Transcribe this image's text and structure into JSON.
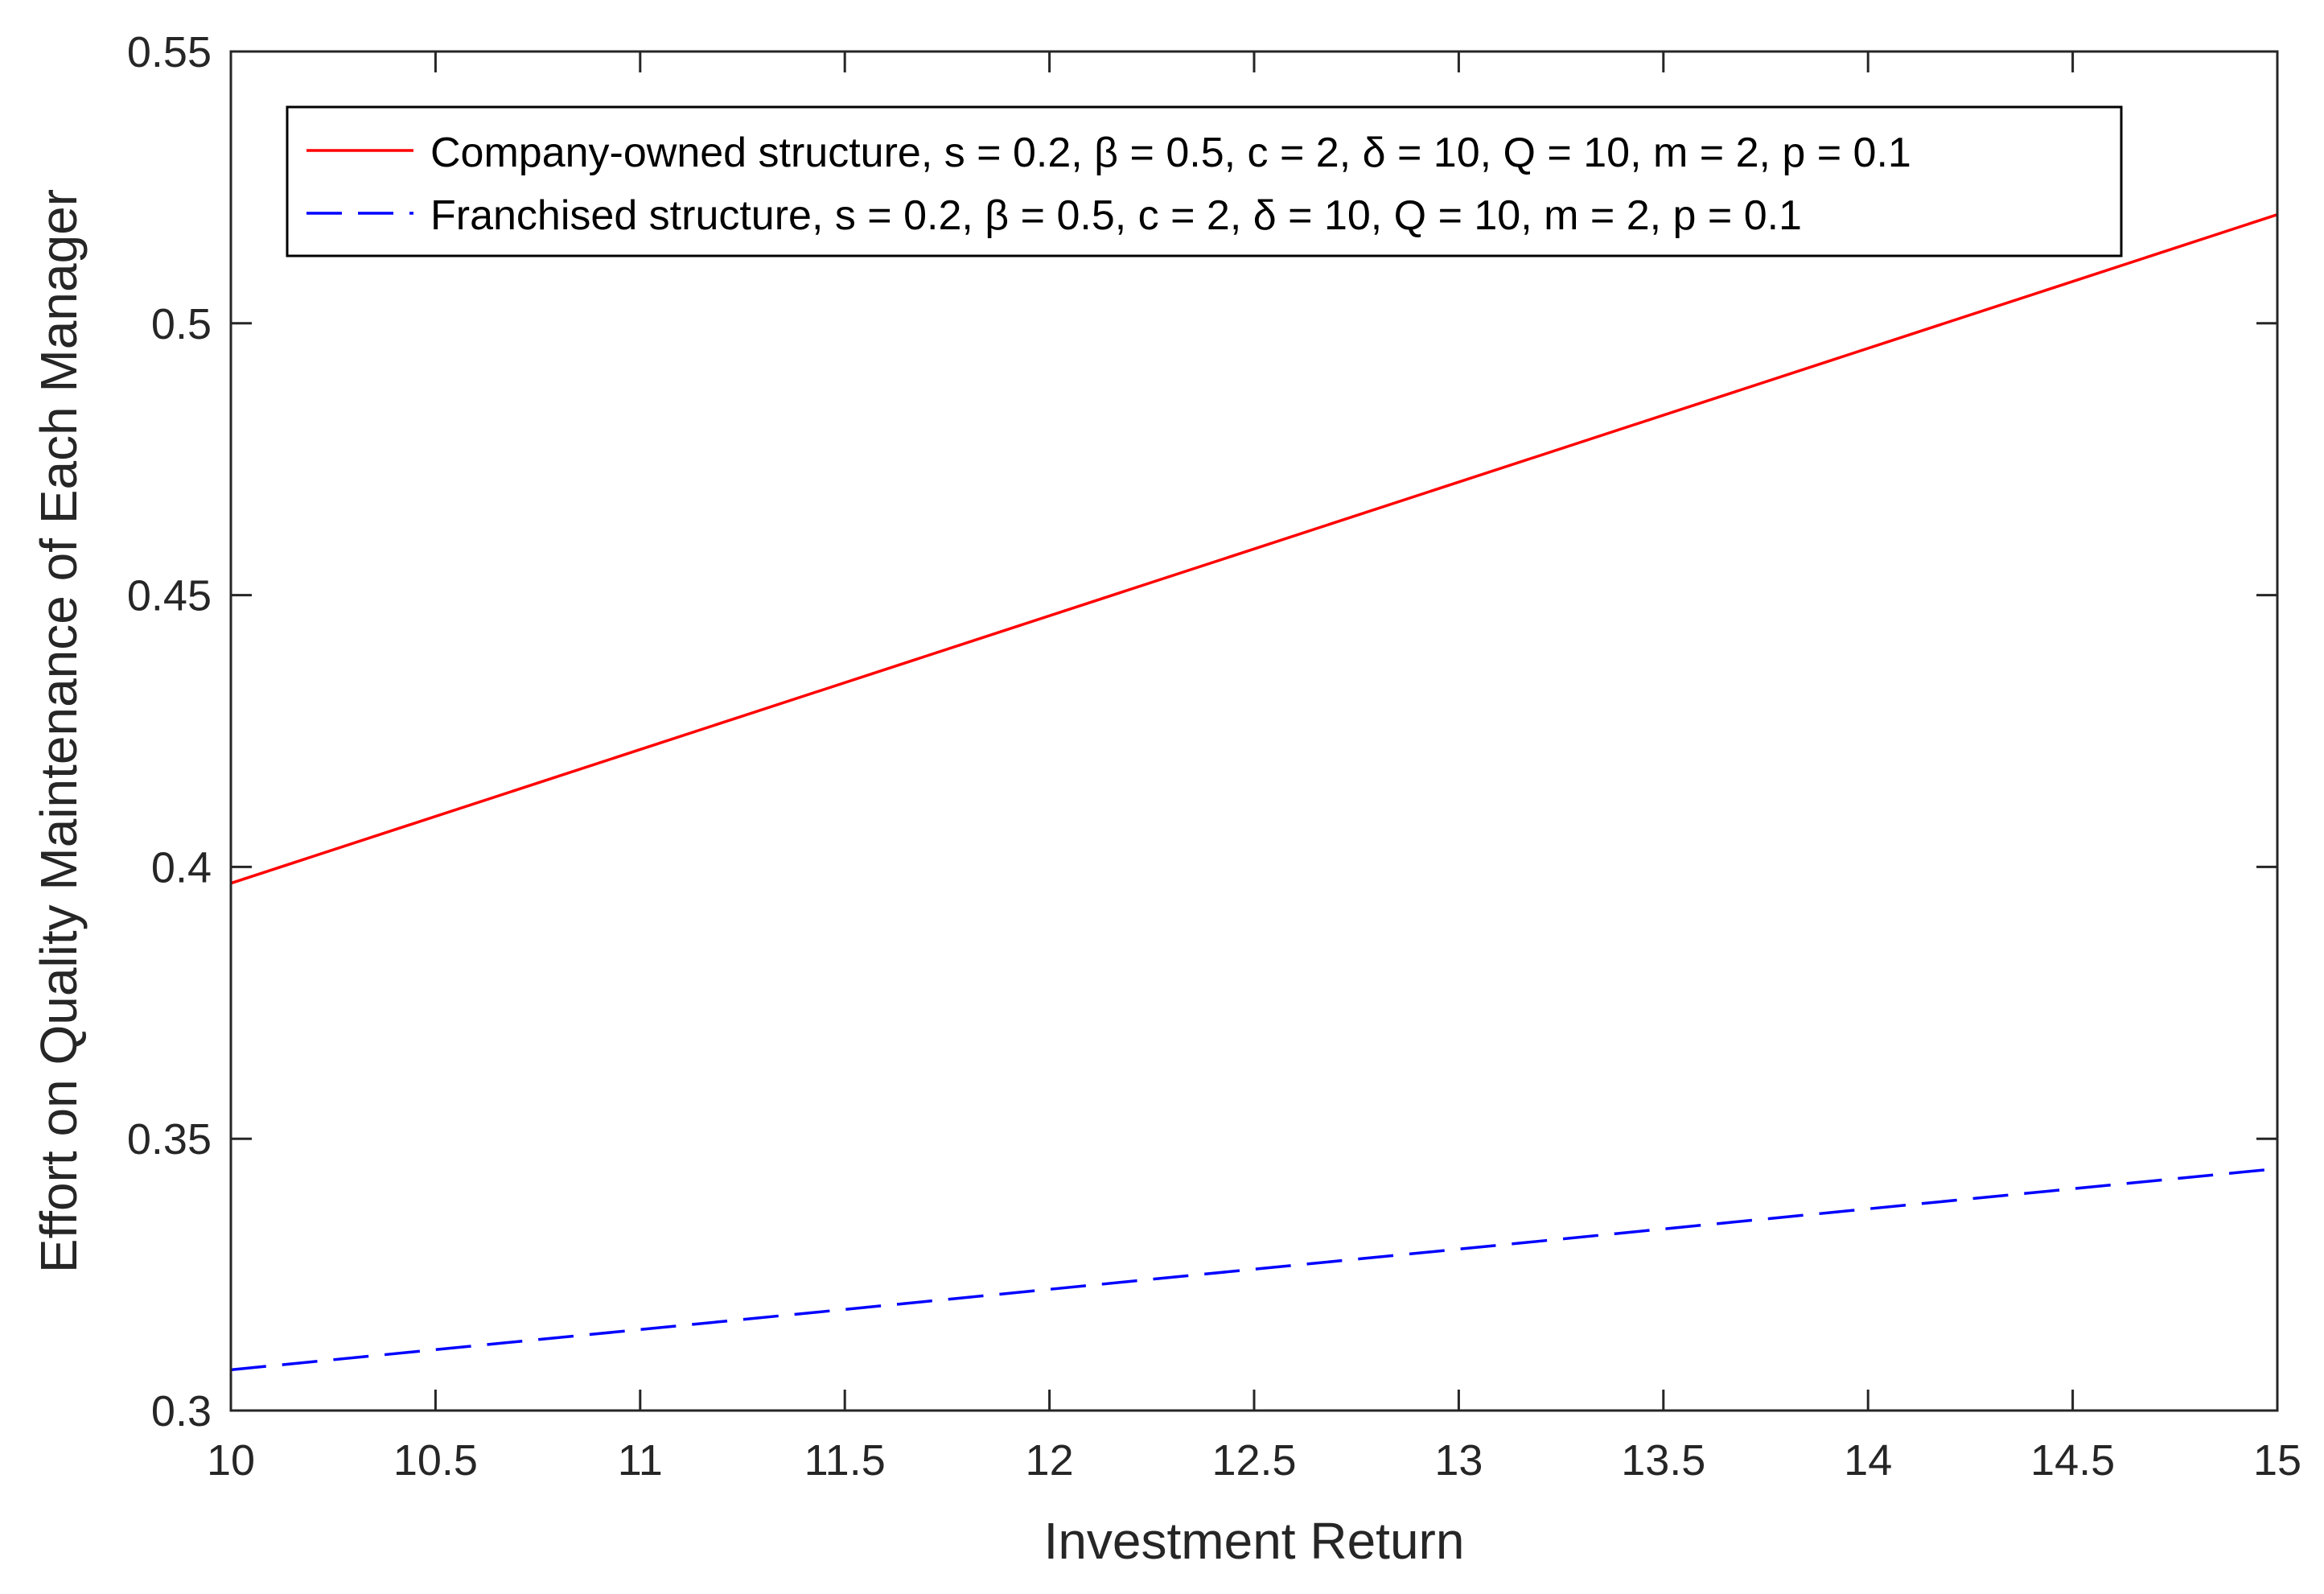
{
  "chart_data": {
    "type": "line",
    "title": "",
    "xlabel": "Investment Return",
    "ylabel": "Effort on Quality Maintenance of Each Manager",
    "xlim": [
      10,
      15
    ],
    "ylim": [
      0.3,
      0.55
    ],
    "xticks": [
      "10",
      "10.5",
      "11",
      "11.5",
      "12",
      "12.5",
      "13",
      "13.5",
      "14",
      "14.5",
      "15"
    ],
    "yticks": [
      "0.3",
      "0.35",
      "0.4",
      "0.45",
      "0.5",
      "0.55"
    ],
    "grid": false,
    "legend_position": "top-left",
    "series": [
      {
        "name": "Company-owned structure, s = 0.2, β = 0.5, c = 2, δ = 10, Q = 10, m = 2, p = 0.1",
        "color": "#ff0000",
        "style": "solid",
        "x": [
          10,
          15
        ],
        "y": [
          0.397,
          0.52
        ]
      },
      {
        "name": "Franchised structure, s = 0.2, β = 0.5, c = 2, δ = 10, Q = 10, m = 2, p = 0.1",
        "color": "#0000ff",
        "style": "dashed",
        "x": [
          10,
          15
        ],
        "y": [
          0.3075,
          0.3445
        ]
      }
    ]
  }
}
